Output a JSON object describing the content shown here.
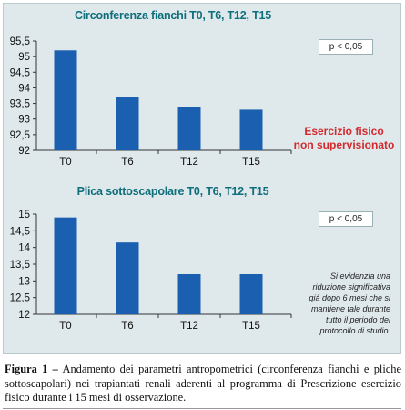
{
  "chart_data": [
    {
      "type": "bar",
      "title": "Circonferenza fianchi T0, T6, T12, T15",
      "categories": [
        "T0",
        "T6",
        "T12",
        "T15"
      ],
      "values": [
        95.2,
        93.7,
        93.4,
        93.3
      ],
      "ylim": [
        92,
        95.5
      ],
      "yticks": [
        "92",
        "92,5",
        "93",
        "93,5",
        "94",
        "94,5",
        "95",
        "95,5"
      ],
      "ytick_values": [
        92,
        92.5,
        93,
        93.5,
        94,
        94.5,
        95,
        95.5
      ],
      "annotation": "p < 0,05",
      "bar_color": "#1a5fb0",
      "grid": false
    },
    {
      "type": "bar",
      "title": "Plica sottoscapolare T0, T6, T12, T15",
      "categories": [
        "T0",
        "T6",
        "T12",
        "T15"
      ],
      "values": [
        14.9,
        14.15,
        13.2,
        13.2
      ],
      "ylim": [
        12,
        15
      ],
      "yticks": [
        "12",
        "12,5",
        "13",
        "13,5",
        "14",
        "14,5",
        "15"
      ],
      "ytick_values": [
        12,
        12.5,
        13,
        13.5,
        14,
        14.5,
        15
      ],
      "annotation": "p < 0,05",
      "bar_color": "#1a5fb0",
      "grid": false
    }
  ],
  "side_label": [
    "Esercizio fisico",
    "non supervisionato"
  ],
  "note": [
    "Si evidenzia una",
    "riduzione significativa",
    "già dopo 6 mesi che si",
    "mantiene tale durante",
    "tutto il periodo del",
    "protocollo di studio."
  ],
  "caption": {
    "bold": "Figura 1 –",
    "text": " Andamento dei parametri antropometrici (circonferenza fianchi e pliche sottoscapolari) nei trapiantati renali aderenti al programma di Prescrizione esercizio fisico durante i 15 mesi di osservazione."
  },
  "colors": {
    "panel_bg": "#dfe9ec",
    "title": "#0f6e7b",
    "accent_red": "#d3282c",
    "bar": "#1a5fb0"
  }
}
